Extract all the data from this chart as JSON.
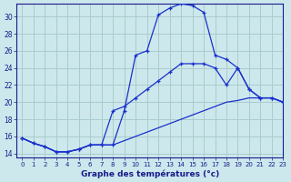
{
  "title": "Graphe des températures (°c)",
  "bg_color": "#cce8ec",
  "grid_color": "#aacccc",
  "line_color": "#1a2fcc",
  "xlim": [
    -0.5,
    23
  ],
  "ylim": [
    13.5,
    31.5
  ],
  "yticks": [
    14,
    16,
    18,
    20,
    22,
    24,
    26,
    28,
    30
  ],
  "xticks": [
    0,
    1,
    2,
    3,
    4,
    5,
    6,
    7,
    8,
    9,
    10,
    11,
    12,
    13,
    14,
    15,
    16,
    17,
    18,
    19,
    20,
    21,
    22,
    23
  ],
  "line1_x": [
    0,
    1,
    2,
    3,
    4,
    5,
    6,
    7,
    8,
    9,
    10,
    11,
    12,
    13,
    14,
    15,
    16,
    17,
    18,
    19,
    20,
    21,
    22,
    23
  ],
  "line1_y": [
    15.8,
    15.2,
    14.8,
    14.2,
    14.2,
    14.5,
    15.0,
    15.0,
    15.0,
    19.0,
    25.5,
    26.0,
    30.2,
    31.0,
    31.5,
    31.3,
    30.5,
    25.5,
    25.0,
    24.0,
    21.5,
    20.5,
    20.5,
    20.0
  ],
  "line2_x": [
    0,
    1,
    2,
    3,
    4,
    5,
    6,
    7,
    8,
    9,
    10,
    11,
    12,
    13,
    14,
    15,
    16,
    17,
    18,
    19,
    20,
    21,
    22,
    23
  ],
  "line2_y": [
    15.8,
    15.2,
    14.8,
    14.2,
    14.2,
    14.5,
    15.0,
    15.0,
    19.0,
    19.5,
    20.5,
    21.5,
    22.5,
    23.5,
    24.5,
    24.5,
    24.5,
    24.0,
    22.0,
    24.0,
    21.5,
    20.5,
    20.5,
    20.0
  ],
  "line3_x": [
    0,
    1,
    2,
    3,
    4,
    5,
    6,
    7,
    8,
    9,
    10,
    11,
    12,
    13,
    14,
    15,
    16,
    17,
    18,
    19,
    20,
    21,
    22,
    23
  ],
  "line3_y": [
    15.8,
    15.2,
    14.8,
    14.2,
    14.2,
    14.5,
    15.0,
    15.0,
    15.0,
    15.5,
    16.0,
    16.5,
    17.0,
    17.5,
    18.0,
    18.5,
    19.0,
    19.5,
    20.0,
    20.2,
    20.5,
    20.5,
    20.5,
    20.0
  ]
}
